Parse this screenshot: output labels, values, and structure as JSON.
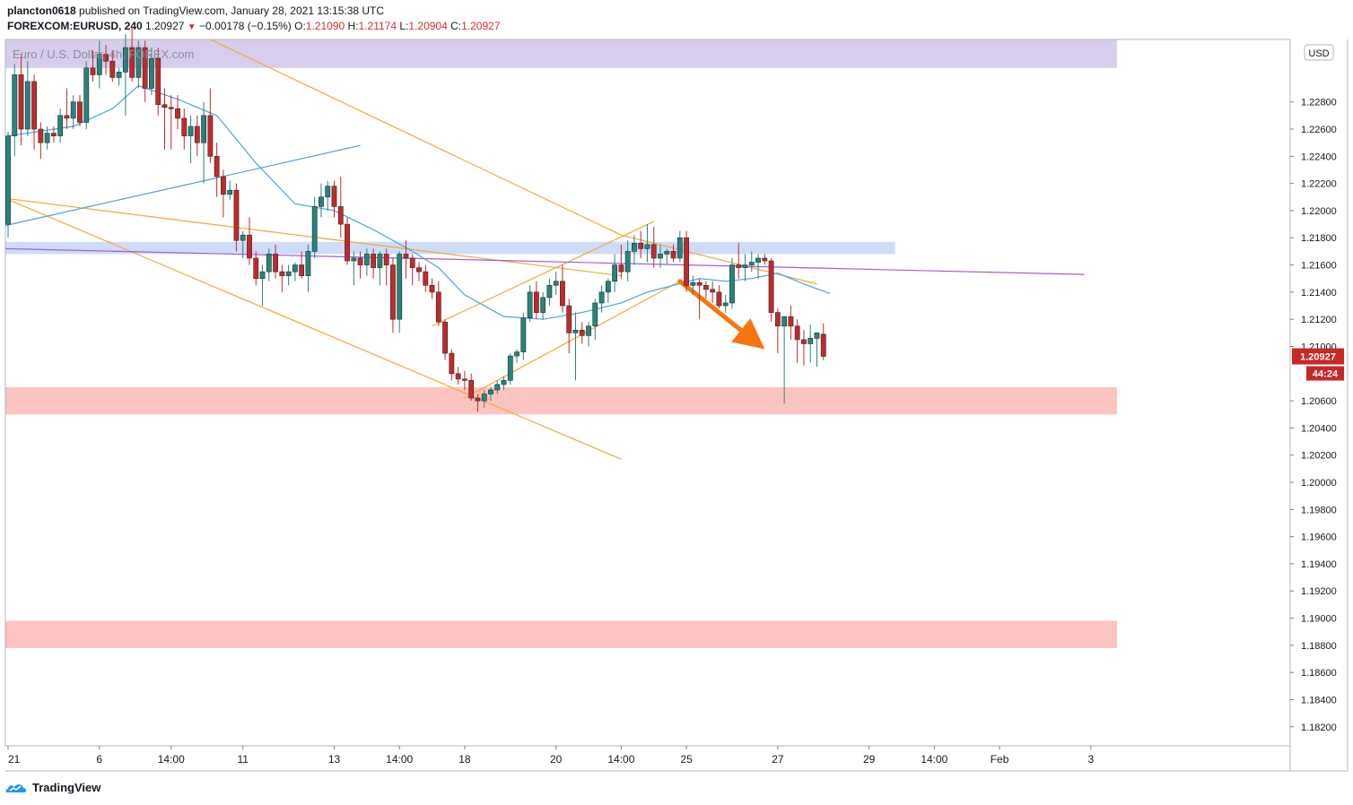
{
  "header": {
    "author": "plancton0618",
    "published_text": "published on TradingView.com, January 28, 2021 13:15:38 UTC",
    "symbol": "FOREXCOM:EURUSD, 240",
    "last": "1.20927",
    "change": "−0.00178 (−0.15%)",
    "o_label": "O:",
    "o_value": "1.21090",
    "h_label": "H:",
    "h_value": "1.21174",
    "l_label": "L:",
    "l_value": "1.20904",
    "c_label": "C:",
    "c_value": "1.20927"
  },
  "watermark": "Euro / U.S. Dollar, 4h, FOREX.com",
  "footer": {
    "brand": "TradingView"
  },
  "chart_data": {
    "type": "candlestick",
    "currency": "USD",
    "grid": false,
    "ylim": [
      1.1806,
      1.2326
    ],
    "y_ticks": [
      "1.22800",
      "1.22600",
      "1.22400",
      "1.22200",
      "1.22000",
      "1.21800",
      "1.21600",
      "1.21400",
      "1.21200",
      "1.21000",
      "1.20600",
      "1.20400",
      "1.20200",
      "1.20000",
      "1.19800",
      "1.19600",
      "1.19400",
      "1.19200",
      "1.19000",
      "1.18800",
      "1.18600",
      "1.18400",
      "1.18200"
    ],
    "y_tick_values": [
      1.228,
      1.226,
      1.224,
      1.222,
      1.22,
      1.218,
      1.216,
      1.214,
      1.212,
      1.21,
      1.206,
      1.204,
      1.202,
      1.2,
      1.198,
      1.196,
      1.194,
      1.192,
      1.19,
      1.188,
      1.186,
      1.184,
      1.182
    ],
    "x_ticks": [
      {
        "label": "21",
        "i": 0
      },
      {
        "label": "6",
        "i": 14
      },
      {
        "label": "14:00",
        "i": 25
      },
      {
        "label": "11",
        "i": 36
      },
      {
        "label": "13",
        "i": 50
      },
      {
        "label": "14:00",
        "i": 60
      },
      {
        "label": "18",
        "i": 70
      },
      {
        "label": "20",
        "i": 84
      },
      {
        "label": "14:00",
        "i": 94
      },
      {
        "label": "25",
        "i": 104
      },
      {
        "label": "27",
        "i": 118
      },
      {
        "label": "29",
        "i": 132
      },
      {
        "label": "14:00",
        "i": 142
      },
      {
        "label": "Feb",
        "i": 152
      },
      {
        "label": "3",
        "i": 166
      }
    ],
    "last_price_label": "1.20927",
    "countdown_label": "44:24",
    "candles": [
      [
        1.219,
        1.2258,
        1.218,
        1.2255
      ],
      [
        1.2255,
        1.2308,
        1.224,
        1.23
      ],
      [
        1.23,
        1.2315,
        1.2248,
        1.226
      ],
      [
        1.226,
        1.231,
        1.2255,
        1.2295
      ],
      [
        1.2295,
        1.23,
        1.2245,
        1.226
      ],
      [
        1.226,
        1.2265,
        1.2238,
        1.225
      ],
      [
        1.225,
        1.2262,
        1.2245,
        1.2257
      ],
      [
        1.2257,
        1.2262,
        1.225,
        1.2255
      ],
      [
        1.2255,
        1.2275,
        1.225,
        1.227
      ],
      [
        1.227,
        1.229,
        1.226,
        1.2268
      ],
      [
        1.2268,
        1.2285,
        1.226,
        1.228
      ],
      [
        1.228,
        1.2285,
        1.2262,
        1.2265
      ],
      [
        1.2265,
        1.231,
        1.226,
        1.2305
      ],
      [
        1.2305,
        1.2318,
        1.2295,
        1.23
      ],
      [
        1.23,
        1.2325,
        1.229,
        1.2315
      ],
      [
        1.2315,
        1.2322,
        1.23,
        1.231
      ],
      [
        1.231,
        1.2318,
        1.2295,
        1.2298
      ],
      [
        1.2298,
        1.2305,
        1.2292,
        1.2302
      ],
      [
        1.2302,
        1.233,
        1.227,
        1.232
      ],
      [
        1.232,
        1.2335,
        1.2295,
        1.2298
      ],
      [
        1.2298,
        1.2325,
        1.229,
        1.232
      ],
      [
        1.232,
        1.2325,
        1.228,
        1.229
      ],
      [
        1.229,
        1.232,
        1.2285,
        1.2312
      ],
      [
        1.2312,
        1.232,
        1.227,
        1.2278
      ],
      [
        1.2278,
        1.229,
        1.2245,
        1.2276
      ],
      [
        1.2276,
        1.2285,
        1.2245,
        1.2275
      ],
      [
        1.2275,
        1.2285,
        1.226,
        1.2268
      ],
      [
        1.2268,
        1.2275,
        1.2245,
        1.2255
      ],
      [
        1.2255,
        1.227,
        1.2235,
        1.2262
      ],
      [
        1.2262,
        1.227,
        1.224,
        1.225
      ],
      [
        1.225,
        1.228,
        1.222,
        1.227
      ],
      [
        1.227,
        1.229,
        1.2235,
        1.224
      ],
      [
        1.224,
        1.225,
        1.221,
        1.2225
      ],
      [
        1.2225,
        1.223,
        1.2195,
        1.2212
      ],
      [
        1.2212,
        1.2222,
        1.2208,
        1.2215
      ],
      [
        1.2215,
        1.222,
        1.217,
        1.2178
      ],
      [
        1.2178,
        1.2185,
        1.2165,
        1.2182
      ],
      [
        1.2182,
        1.2195,
        1.216,
        1.2165
      ],
      [
        1.2165,
        1.217,
        1.2145,
        1.215
      ],
      [
        1.215,
        1.216,
        1.213,
        1.2155
      ],
      [
        1.2155,
        1.2172,
        1.2148,
        1.2168
      ],
      [
        1.2168,
        1.2175,
        1.215,
        1.2155
      ],
      [
        1.2155,
        1.216,
        1.214,
        1.2152
      ],
      [
        1.2152,
        1.216,
        1.2145,
        1.2155
      ],
      [
        1.2155,
        1.2162,
        1.2148,
        1.216
      ],
      [
        1.216,
        1.217,
        1.215,
        1.2152
      ],
      [
        1.2152,
        1.2175,
        1.214,
        1.217
      ],
      [
        1.217,
        1.221,
        1.2165,
        1.2203
      ],
      [
        1.2203,
        1.222,
        1.2195,
        1.221
      ],
      [
        1.221,
        1.2222,
        1.22,
        1.2218
      ],
      [
        1.2218,
        1.2222,
        1.2195,
        1.2203
      ],
      [
        1.2203,
        1.2225,
        1.218,
        1.219
      ],
      [
        1.219,
        1.2195,
        1.216,
        1.2163
      ],
      [
        1.2163,
        1.217,
        1.2145,
        1.2165
      ],
      [
        1.2165,
        1.217,
        1.215,
        1.216
      ],
      [
        1.216,
        1.2172,
        1.2152,
        1.2168
      ],
      [
        1.2168,
        1.2172,
        1.215,
        1.2158
      ],
      [
        1.2158,
        1.217,
        1.2145,
        1.2168
      ],
      [
        1.2168,
        1.2172,
        1.2145,
        1.216
      ],
      [
        1.216,
        1.2165,
        1.211,
        1.212
      ],
      [
        1.212,
        1.217,
        1.211,
        1.2168
      ],
      [
        1.2168,
        1.2178,
        1.215,
        1.2165
      ],
      [
        1.2165,
        1.2168,
        1.2145,
        1.2158
      ],
      [
        1.2158,
        1.2162,
        1.2148,
        1.2155
      ],
      [
        1.2155,
        1.216,
        1.214,
        1.2145
      ],
      [
        1.2145,
        1.215,
        1.2135,
        1.214
      ],
      [
        1.214,
        1.2148,
        1.2115,
        1.2118
      ],
      [
        1.2118,
        1.212,
        1.209,
        1.2095
      ],
      [
        1.2095,
        1.2098,
        1.2075,
        1.208
      ],
      [
        1.208,
        1.2085,
        1.2072,
        1.2076
      ],
      [
        1.2076,
        1.2082,
        1.2068,
        1.2075
      ],
      [
        1.2075,
        1.208,
        1.206,
        1.2062
      ],
      [
        1.2062,
        1.2065,
        1.2052,
        1.206
      ],
      [
        1.206,
        1.2068,
        1.2055,
        1.2065
      ],
      [
        1.2065,
        1.207,
        1.206,
        1.2068
      ],
      [
        1.2068,
        1.2075,
        1.2065,
        1.2072
      ],
      [
        1.2072,
        1.2078,
        1.2068,
        1.2075
      ],
      [
        1.2075,
        1.2095,
        1.2072,
        1.2093
      ],
      [
        1.2093,
        1.2098,
        1.2088,
        1.2096
      ],
      [
        1.2096,
        1.2125,
        1.209,
        1.2121
      ],
      [
        1.2121,
        1.2145,
        1.2118,
        1.214
      ],
      [
        1.214,
        1.2148,
        1.212,
        1.2125
      ],
      [
        1.2125,
        1.214,
        1.212,
        1.2136
      ],
      [
        1.2136,
        1.215,
        1.213,
        1.2145
      ],
      [
        1.2145,
        1.2155,
        1.2138,
        1.2148
      ],
      [
        1.2148,
        1.216,
        1.2125,
        1.213
      ],
      [
        1.213,
        1.2135,
        1.2095,
        1.211
      ],
      [
        1.211,
        1.2125,
        1.2075,
        1.2112
      ],
      [
        1.2112,
        1.2118,
        1.2102,
        1.2108
      ],
      [
        1.2108,
        1.2118,
        1.21,
        1.2115
      ],
      [
        1.2115,
        1.2135,
        1.2105,
        1.2132
      ],
      [
        1.2132,
        1.2145,
        1.2125,
        1.214
      ],
      [
        1.214,
        1.215,
        1.2132,
        1.2148
      ],
      [
        1.2148,
        1.2168,
        1.214,
        1.216
      ],
      [
        1.216,
        1.2175,
        1.215,
        1.2155
      ],
      [
        1.2155,
        1.2178,
        1.2148,
        1.217
      ],
      [
        1.217,
        1.2182,
        1.216,
        1.2176
      ],
      [
        1.2176,
        1.2185,
        1.2165,
        1.2172
      ],
      [
        1.2172,
        1.219,
        1.2162,
        1.2175
      ],
      [
        1.2175,
        1.2188,
        1.2158,
        1.2165
      ],
      [
        1.2165,
        1.2175,
        1.2158,
        1.2168
      ],
      [
        1.2168,
        1.2172,
        1.216,
        1.217
      ],
      [
        1.217,
        1.2175,
        1.2162,
        1.2165
      ],
      [
        1.2165,
        1.2185,
        1.2162,
        1.218
      ],
      [
        1.218,
        1.2185,
        1.214,
        1.2145
      ],
      [
        1.2145,
        1.2152,
        1.2138,
        1.2147
      ],
      [
        1.2147,
        1.215,
        1.212,
        1.2145
      ],
      [
        1.2145,
        1.2148,
        1.2135,
        1.2142
      ],
      [
        1.2142,
        1.2148,
        1.2132,
        1.214
      ],
      [
        1.214,
        1.2145,
        1.2128,
        1.213
      ],
      [
        1.213,
        1.2138,
        1.2125,
        1.2132
      ],
      [
        1.2132,
        1.2165,
        1.2128,
        1.216
      ],
      [
        1.216,
        1.2176,
        1.215,
        1.2158
      ],
      [
        1.2158,
        1.2168,
        1.2148,
        1.216
      ],
      [
        1.216,
        1.217,
        1.2155,
        1.2162
      ],
      [
        1.2162,
        1.2168,
        1.215,
        1.2165
      ],
      [
        1.2165,
        1.2168,
        1.216,
        1.2163
      ],
      [
        1.2163,
        1.2165,
        1.2118,
        1.2125
      ],
      [
        1.2125,
        1.2128,
        1.2095,
        1.2115
      ],
      [
        1.2115,
        1.212,
        1.2058,
        1.2122
      ],
      [
        1.2122,
        1.213,
        1.2105,
        1.2115
      ],
      [
        1.2115,
        1.212,
        1.2088,
        1.2105
      ],
      [
        1.2105,
        1.2112,
        1.2086,
        1.2102
      ],
      [
        1.2102,
        1.2116,
        1.2088,
        1.2106
      ],
      [
        1.2106,
        1.2108,
        1.2085,
        1.211
      ],
      [
        1.2109,
        1.2117,
        1.209,
        1.20927
      ]
    ],
    "ma_line": [
      [
        0,
        1.2255
      ],
      [
        10,
        1.2262
      ],
      [
        16,
        1.2275
      ],
      [
        20,
        1.2292
      ],
      [
        26,
        1.2282
      ],
      [
        32,
        1.227
      ],
      [
        38,
        1.2235
      ],
      [
        44,
        1.2205
      ],
      [
        50,
        1.22
      ],
      [
        56,
        1.2186
      ],
      [
        62,
        1.217
      ],
      [
        66,
        1.2158
      ],
      [
        70,
        1.2138
      ],
      [
        76,
        1.2122
      ],
      [
        82,
        1.212
      ],
      [
        88,
        1.2125
      ],
      [
        94,
        1.2132
      ],
      [
        98,
        1.214
      ],
      [
        102,
        1.2145
      ],
      [
        106,
        1.215
      ],
      [
        110,
        1.2148
      ],
      [
        114,
        1.215
      ],
      [
        118,
        1.2154
      ],
      [
        122,
        1.2146
      ],
      [
        126,
        1.2139
      ]
    ],
    "zones": [
      {
        "color": "#d1c4e9",
        "y1": 1.2305,
        "y2": 1.2326,
        "i_from": -1,
        "i_to": 170
      },
      {
        "color": "#c5d6f7",
        "y1": 1.2168,
        "y2": 1.2177,
        "i_from": -1,
        "i_to": 136
      },
      {
        "color": "#fbb8b6",
        "y1": 1.205,
        "y2": 1.207,
        "i_from": -1,
        "i_to": 170
      },
      {
        "color": "#fbb8b6",
        "y1": 1.1878,
        "y2": 1.1898,
        "i_from": -1,
        "i_to": 170
      }
    ],
    "trendlines": [
      {
        "color": "#f7a733",
        "from": [
          -1,
          1.2209
        ],
        "to": [
          94,
          1.2152
        ]
      },
      {
        "color": "#f7a733",
        "from": [
          31,
          1.2326
        ],
        "to": [
          94,
          1.2182
        ]
      },
      {
        "color": "#f7a733",
        "from": [
          94,
          1.2182
        ],
        "to": [
          124,
          1.2146
        ]
      },
      {
        "color": "#f7a733",
        "from": [
          -1,
          1.2209
        ],
        "to": [
          94,
          1.2017
        ]
      },
      {
        "color": "#f7a733",
        "from": [
          65,
          1.2115
        ],
        "to": [
          99,
          1.2192
        ]
      },
      {
        "color": "#f7a733",
        "from": [
          70,
          1.2062
        ],
        "to": [
          103,
          1.2148
        ]
      },
      {
        "color": "#5b9bd5",
        "from": [
          -1,
          1.2189
        ],
        "to": [
          54,
          1.2248
        ]
      },
      {
        "color": "#a35bdb",
        "from": [
          -1,
          1.2172
        ],
        "to": [
          165,
          1.2153
        ]
      }
    ],
    "arrow": {
      "color": "#f7740f",
      "from": [
        103,
        1.2148
      ],
      "to": [
        116,
        1.2098
      ]
    }
  }
}
